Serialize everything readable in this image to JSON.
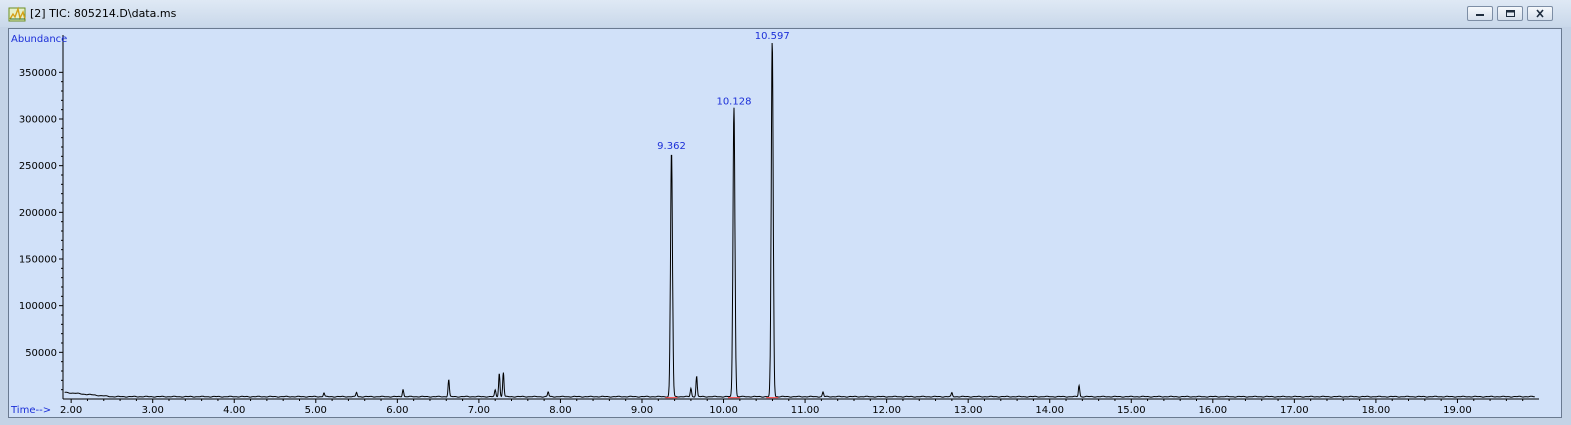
{
  "window": {
    "title": "[2] TIC: 805214.D\\data.ms",
    "icon": "chromatogram-app-icon",
    "controls": [
      "minimize",
      "maximize",
      "close"
    ]
  },
  "colors": {
    "plot_background": "#d1e1f9",
    "trace": "#000000",
    "label_blue": "#1c2fd8",
    "integration_marker": "#ff4040"
  },
  "chart_data": {
    "type": "line",
    "xlabel": "Time-->",
    "ylabel": "Abundance",
    "xlim": [
      1.9,
      20.0
    ],
    "ylim": [
      0,
      390000
    ],
    "grid": false,
    "x_ticks": [
      "2.00",
      "3.00",
      "4.00",
      "5.00",
      "6.00",
      "7.00",
      "8.00",
      "9.00",
      "10.00",
      "11.00",
      "12.00",
      "13.00",
      "14.00",
      "15.00",
      "16.00",
      "17.00",
      "18.00",
      "19.00"
    ],
    "y_ticks": [
      "50000",
      "100000",
      "150000",
      "200000",
      "250000",
      "300000",
      "350000"
    ],
    "baseline": 2500,
    "peaks": [
      {
        "time": 5.1,
        "abundance": 4000
      },
      {
        "time": 5.5,
        "abundance": 4500
      },
      {
        "time": 6.07,
        "abundance": 8000
      },
      {
        "time": 6.63,
        "abundance": 18000
      },
      {
        "time": 7.2,
        "abundance": 7000
      },
      {
        "time": 7.25,
        "abundance": 25000
      },
      {
        "time": 7.3,
        "abundance": 26000
      },
      {
        "time": 7.85,
        "abundance": 5000
      },
      {
        "time": 9.362,
        "abundance": 262000,
        "label": "9.362"
      },
      {
        "time": 9.6,
        "abundance": 9000
      },
      {
        "time": 9.67,
        "abundance": 22000
      },
      {
        "time": 10.128,
        "abundance": 310000,
        "label": "10.128"
      },
      {
        "time": 10.597,
        "abundance": 380000,
        "label": "10.597"
      },
      {
        "time": 11.22,
        "abundance": 5000
      },
      {
        "time": 12.8,
        "abundance": 4000
      },
      {
        "time": 14.36,
        "abundance": 12000
      }
    ]
  }
}
